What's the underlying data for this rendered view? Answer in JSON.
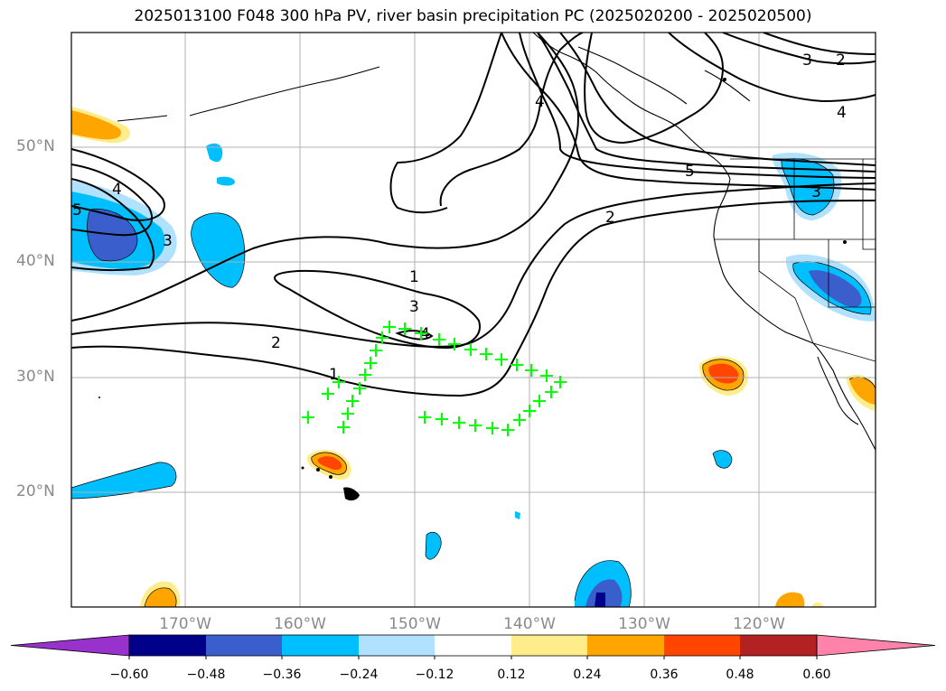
{
  "title": "2025013100 F048 300 hPa PV, river basin precipitation PC (2025020200 - 2025020500)",
  "lat_labels": [
    "50°N",
    "40°N",
    "30°N",
    "20°N"
  ],
  "lon_labels": [
    "170°W",
    "160°W",
    "150°W",
    "140°W",
    "130°W",
    "120°W"
  ],
  "contour_labels": {
    "c4_west": "4",
    "c3_west": "3",
    "c1_mid": "1",
    "c3_mid": "3",
    "c4_center": "4",
    "c2_south": "2",
    "c1_south": "1",
    "c4_north": "4",
    "c5_north": "5",
    "c2_east": "2",
    "c3_ne": "3",
    "c2_ne": "2",
    "c4_ne": "4",
    "c3_us": "3",
    "c5_west": "5"
  },
  "colorbar": {
    "ticks": [
      "−0.60",
      "−0.48",
      "−0.36",
      "−0.24",
      "−0.12",
      "0.12",
      "0.24",
      "0.36",
      "0.48",
      "0.60"
    ],
    "colors": [
      "#9932cc",
      "#00008b",
      "#3a5fcd",
      "#00bfff",
      "#b0e2ff",
      "#ffffff",
      "#ffec8b",
      "#ffa500",
      "#ff4500",
      "#b22222",
      "#ff82ab"
    ]
  },
  "marker_color": "#00ff00"
}
